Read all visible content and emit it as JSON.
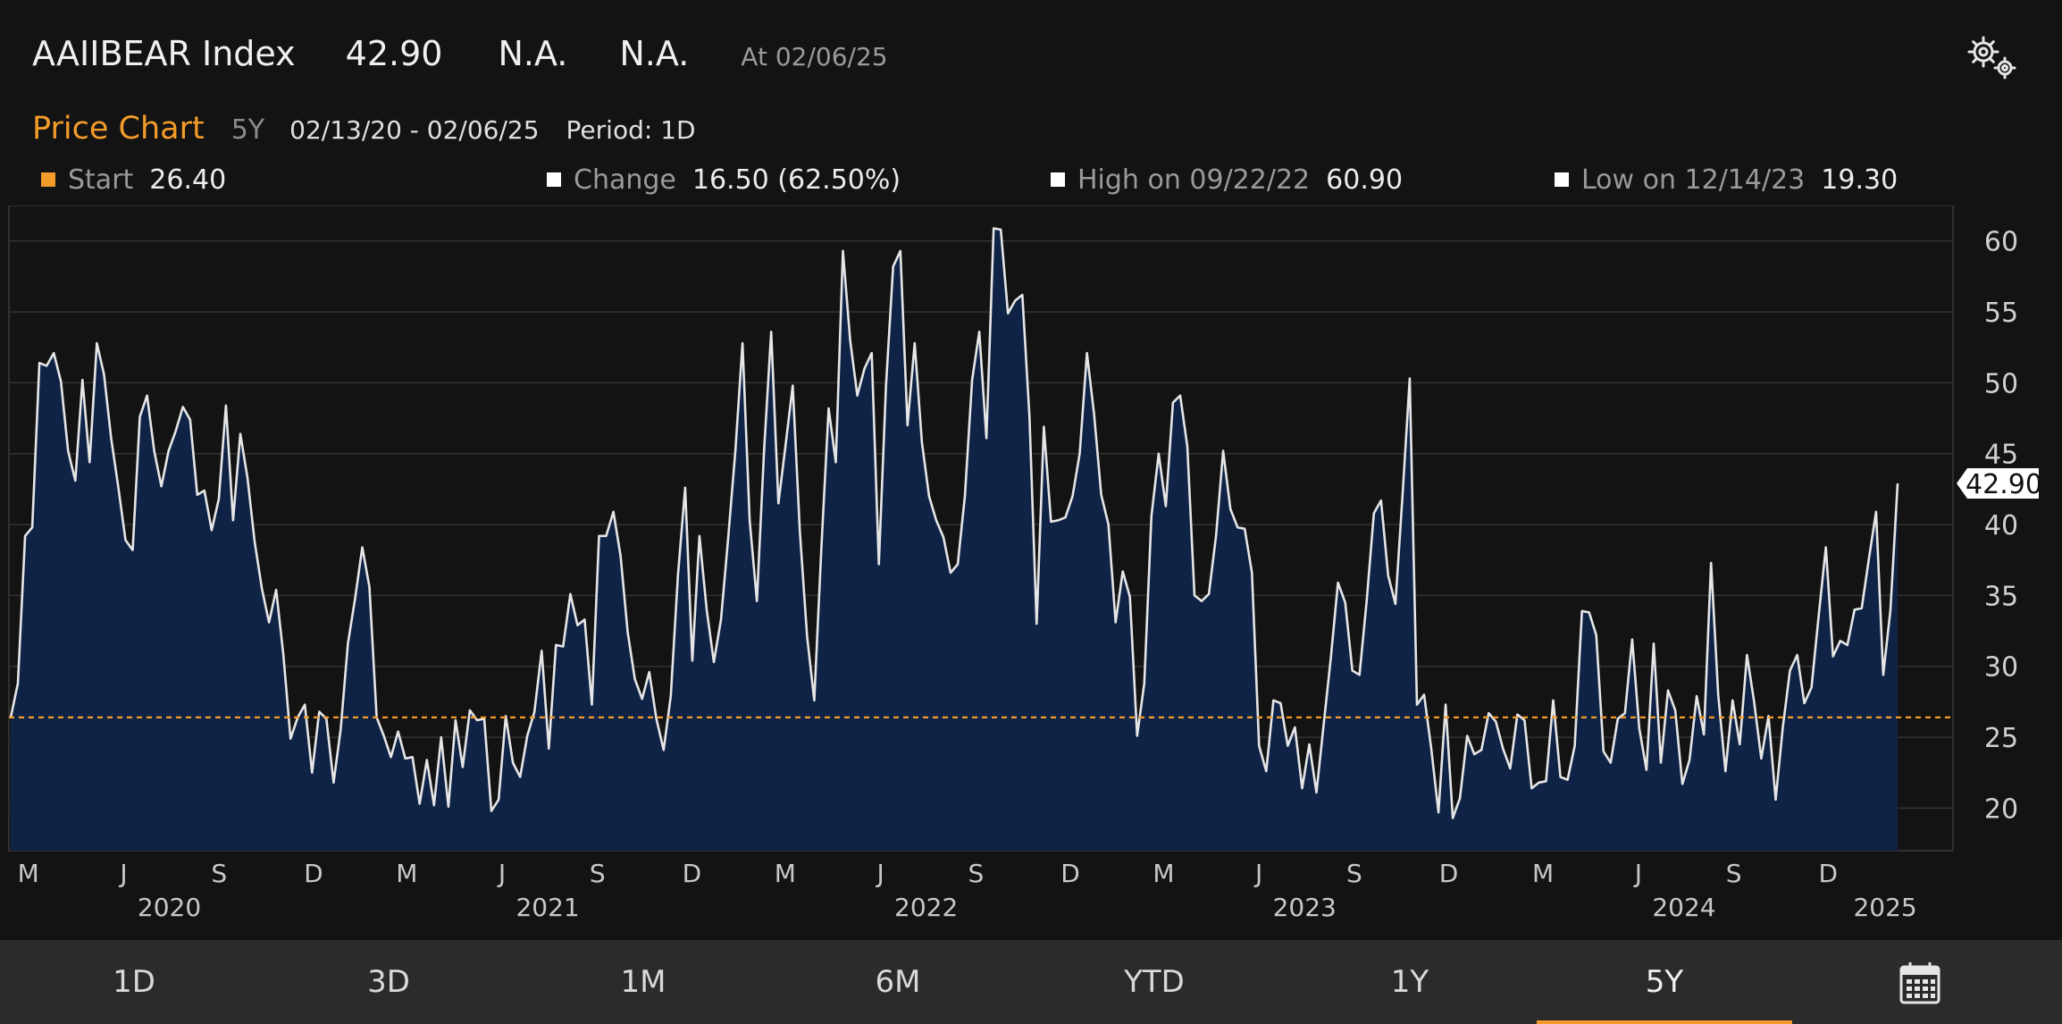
{
  "header": {
    "title": "AAIIBEAR Index",
    "value": "42.90",
    "na1": "N.A.",
    "na2": "N.A.",
    "as_of": "At 02/06/25"
  },
  "subheader": {
    "label": "Price Chart",
    "period_short": "5Y",
    "date_range": "02/13/20 - 02/06/25",
    "period": "Period: 1D"
  },
  "stats": {
    "start_label": "Start",
    "start_value": "26.40",
    "change_label": "Change",
    "change_value": "16.50 (62.50%)",
    "high_label": "High on 09/22/22",
    "high_value": "60.90",
    "low_label": "Low on 12/14/23",
    "low_value": "19.30"
  },
  "tabs": [
    "1D",
    "3D",
    "1M",
    "6M",
    "YTD",
    "1Y",
    "5Y"
  ],
  "active_tab": "5Y",
  "icons": {
    "settings": "gears-icon",
    "calendar": "calendar-icon"
  },
  "colors": {
    "background": "#131313",
    "line": "#e6e6e6",
    "fill": "#0f2347",
    "start_line": "#f39c2a",
    "accent": "#f39c2a"
  },
  "chart_data": {
    "type": "area",
    "series": [
      {
        "values": [
          26.4,
          28.8,
          39.2,
          39.8,
          51.4,
          51.2,
          52.1,
          50.1,
          45.2,
          43.1,
          50.2,
          44.4,
          52.8,
          50.6,
          46.1,
          42.6,
          38.9,
          38.2,
          47.6,
          49.1,
          45.2,
          42.7,
          45.2,
          46.6,
          48.3,
          47.4,
          42.1,
          42.4,
          39.6,
          41.8,
          48.4,
          40.3,
          46.4,
          43.3,
          38.8,
          35.5,
          33.1,
          35.4,
          30.8,
          24.9,
          26.4,
          27.3,
          22.5,
          26.8,
          26.3,
          21.8,
          25.6,
          31.6,
          34.8,
          38.4,
          35.6,
          26.4,
          25.1,
          23.6,
          25.4,
          23.5,
          23.6,
          20.3,
          23.4,
          20.2,
          25.0,
          20.1,
          26.2,
          22.9,
          26.9,
          26.2,
          26.3,
          19.8,
          20.6,
          26.5,
          23.2,
          22.2,
          25.1,
          26.8,
          31.1,
          24.2,
          31.5,
          31.4,
          35.1,
          32.9,
          33.3,
          27.3,
          39.2,
          39.2,
          40.9,
          37.8,
          32.4,
          29.1,
          27.7,
          29.6,
          26.3,
          24.1,
          27.9,
          36.4,
          42.6,
          30.4,
          39.2,
          34.0,
          30.3,
          33.3,
          39.0,
          45.2,
          52.8,
          40.3,
          34.6,
          45.2,
          53.6,
          41.5,
          45.6,
          49.8,
          39.5,
          32.1,
          27.6,
          38.4,
          48.2,
          44.4,
          59.3,
          53.0,
          49.1,
          51.0,
          52.1,
          37.2,
          49.8,
          58.2,
          59.3,
          47.0,
          52.8,
          45.8,
          42.0,
          40.3,
          39.1,
          36.6,
          37.2,
          42.0,
          50.2,
          53.6,
          46.1,
          60.9,
          60.8,
          54.9,
          55.8,
          56.2,
          47.6,
          33.0,
          46.9,
          40.2,
          40.3,
          40.5,
          42.0,
          45.0,
          52.1,
          47.8,
          42.1,
          40.0,
          33.1,
          36.7,
          34.9,
          25.1,
          28.8,
          40.6,
          45.0,
          41.3,
          48.6,
          49.1,
          45.5,
          35.0,
          34.6,
          35.1,
          39.2,
          45.2,
          41.1,
          39.8,
          39.7,
          36.6,
          24.4,
          22.6,
          27.6,
          27.4,
          24.4,
          25.7,
          21.4,
          24.5,
          21.1,
          25.9,
          30.6,
          35.9,
          34.5,
          29.7,
          29.4,
          34.6,
          40.8,
          41.7,
          36.4,
          34.4,
          42.1,
          50.3,
          27.3,
          28.0,
          24.2,
          19.7,
          27.3,
          19.3,
          20.7,
          25.1,
          23.8,
          24.1,
          26.7,
          26.1,
          24.2,
          22.8,
          26.6,
          26.2,
          21.4,
          21.8,
          21.9,
          27.6,
          22.2,
          22.0,
          24.4,
          33.9,
          33.8,
          32.2,
          24.0,
          23.2,
          26.3,
          26.7,
          31.9,
          25.6,
          22.7,
          31.6,
          23.2,
          28.3,
          26.9,
          21.7,
          23.4,
          27.9,
          25.2,
          37.3,
          28.0,
          22.6,
          27.6,
          24.5,
          30.8,
          27.5,
          23.5,
          26.5,
          20.6,
          25.7,
          29.7,
          30.8,
          27.4,
          28.5,
          33.6,
          38.4,
          30.7,
          31.8,
          31.5,
          34.0,
          34.1,
          37.6,
          40.9,
          29.4,
          34.0,
          42.9
        ]
      }
    ],
    "x_start": "02/13/20",
    "x_end": "02/06/25",
    "ylim": [
      17,
      62
    ],
    "yticks": [
      20,
      25,
      30,
      35,
      40,
      45,
      50,
      55,
      60
    ],
    "month_ticks": [
      {
        "label": "M",
        "date": "2020-03-01"
      },
      {
        "label": "J",
        "date": "2020-06-01"
      },
      {
        "label": "S",
        "date": "2020-09-01"
      },
      {
        "label": "D",
        "date": "2020-12-01"
      },
      {
        "label": "M",
        "date": "2021-03-01"
      },
      {
        "label": "J",
        "date": "2021-06-01"
      },
      {
        "label": "S",
        "date": "2021-09-01"
      },
      {
        "label": "D",
        "date": "2021-12-01"
      },
      {
        "label": "M",
        "date": "2022-03-01"
      },
      {
        "label": "J",
        "date": "2022-06-01"
      },
      {
        "label": "S",
        "date": "2022-09-01"
      },
      {
        "label": "D",
        "date": "2022-12-01"
      },
      {
        "label": "M",
        "date": "2023-03-01"
      },
      {
        "label": "J",
        "date": "2023-06-01"
      },
      {
        "label": "S",
        "date": "2023-09-01"
      },
      {
        "label": "D",
        "date": "2023-12-01"
      },
      {
        "label": "M",
        "date": "2024-03-01"
      },
      {
        "label": "J",
        "date": "2024-06-01"
      },
      {
        "label": "S",
        "date": "2024-09-01"
      },
      {
        "label": "D",
        "date": "2024-12-01"
      }
    ],
    "year_labels": [
      {
        "label": "2020",
        "date": "2020-07-15"
      },
      {
        "label": "2021",
        "date": "2021-07-15"
      },
      {
        "label": "2022",
        "date": "2022-07-15"
      },
      {
        "label": "2023",
        "date": "2023-07-15"
      },
      {
        "label": "2024",
        "date": "2024-07-15"
      },
      {
        "label": "2025",
        "date": "2025-01-25"
      }
    ],
    "start_value": 26.4,
    "last_value": 42.9,
    "last_value_label": "42.90",
    "grid": true
  }
}
